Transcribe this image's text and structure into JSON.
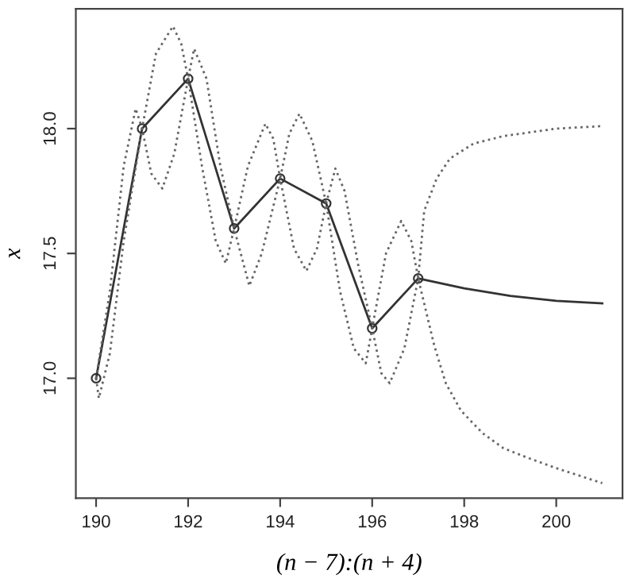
{
  "chart_data": {
    "type": "line",
    "xlabel": "(n − 7):(n + 4)",
    "ylabel": "x",
    "xlim": [
      189.56,
      201.44
    ],
    "ylim": [
      16.52,
      18.48
    ],
    "xticks": [
      190,
      192,
      194,
      196,
      198,
      200
    ],
    "yticks": [
      {
        "value": 17.0,
        "label": "17.0"
      },
      {
        "value": 17.5,
        "label": "17.5"
      },
      {
        "value": 18.0,
        "label": "18.0"
      }
    ],
    "grid": false,
    "legend": false,
    "series": [
      {
        "color": "#333333",
        "marker": "circle",
        "line_style": "solid",
        "x": [
          190,
          191,
          192,
          193,
          194,
          195,
          196,
          197
        ],
        "values": [
          17.0,
          18.0,
          18.2,
          17.6,
          17.8,
          17.7,
          17.2,
          17.4
        ]
      },
      {
        "color": "#333333",
        "marker": "none",
        "line_style": "solid",
        "x": [
          197,
          198,
          199,
          200,
          201
        ],
        "values": [
          17.4,
          17.36,
          17.33,
          17.31,
          17.3
        ]
      },
      {
        "color": "#666666",
        "marker": "none",
        "line_style": "dotted",
        "x": [
          190,
          190.3,
          190.6,
          190.86,
          191,
          191.2,
          191.44,
          191.7,
          192,
          192.13,
          192.4,
          192.7,
          193,
          193.33,
          193.6,
          194,
          194.2,
          194.42,
          194.7,
          195,
          195.3,
          195.6,
          195.86,
          196,
          196.3,
          196.63,
          196.85,
          197,
          197.35,
          197.6,
          197.93,
          198.4,
          198.85,
          199.4,
          200,
          201
        ],
        "values": [
          17.0,
          17.35,
          17.85,
          18.08,
          18.0,
          17.82,
          17.76,
          17.9,
          18.2,
          18.32,
          18.2,
          17.85,
          17.6,
          17.37,
          17.5,
          17.8,
          17.98,
          18.06,
          17.95,
          17.7,
          17.35,
          17.12,
          17.06,
          17.2,
          17.5,
          17.63,
          17.55,
          17.4,
          17.13,
          16.98,
          16.87,
          16.78,
          16.72,
          16.68,
          16.64,
          16.58
        ]
      },
      {
        "color": "#666666",
        "marker": "none",
        "line_style": "dotted",
        "x": [
          190,
          190.06,
          190.3,
          190.6,
          191,
          191.3,
          191.67,
          191.85,
          192,
          192.3,
          192.6,
          192.82,
          193,
          193.3,
          193.68,
          193.85,
          194,
          194.3,
          194.57,
          194.8,
          195,
          195.2,
          195.4,
          195.7,
          196,
          196.2,
          196.38,
          196.7,
          197,
          197.13,
          197.4,
          197.69,
          198.2,
          198.85,
          200,
          201
        ],
        "values": [
          17.0,
          16.92,
          17.1,
          17.55,
          18.0,
          18.3,
          18.41,
          18.34,
          18.2,
          17.85,
          17.55,
          17.46,
          17.6,
          17.85,
          18.02,
          17.96,
          17.8,
          17.52,
          17.43,
          17.52,
          17.7,
          17.84,
          17.75,
          17.45,
          17.2,
          17.02,
          16.98,
          17.12,
          17.4,
          17.67,
          17.8,
          17.88,
          17.94,
          17.97,
          18.0,
          18.01
        ]
      }
    ]
  }
}
